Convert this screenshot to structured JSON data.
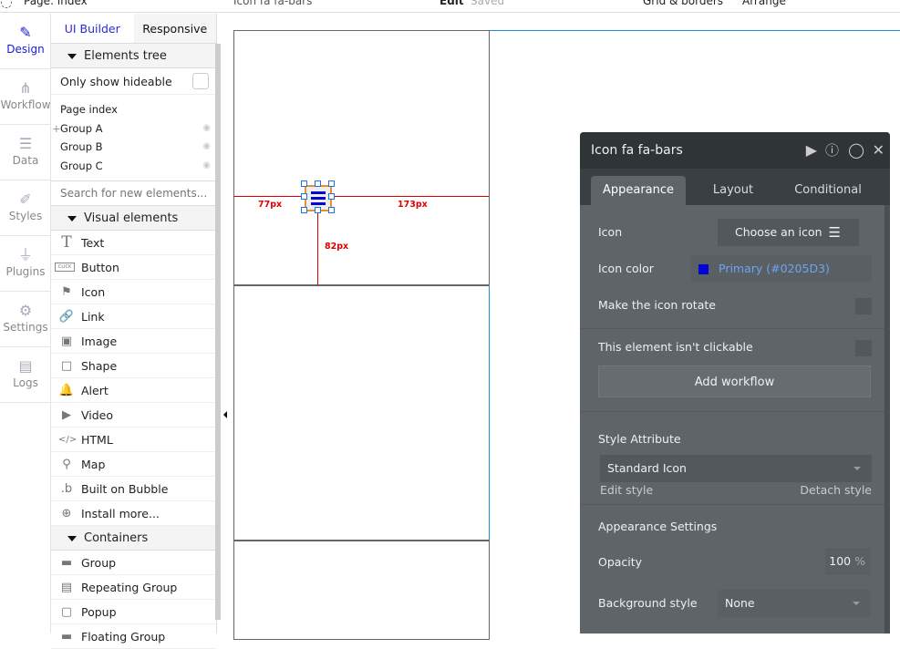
{
  "topbar": {
    "page_selector": "Page: index",
    "element_selector": "Icon fa fa-bars",
    "mode": "Edit",
    "save_status": "Saved",
    "grid_label": "Grid & borders",
    "arrange_label": "Arrange"
  },
  "nav": [
    {
      "label": "Design",
      "icon": "design-icon"
    },
    {
      "label": "Workflow",
      "icon": "workflow-icon"
    },
    {
      "label": "Data",
      "icon": "database-icon"
    },
    {
      "label": "Styles",
      "icon": "brush-icon"
    },
    {
      "label": "Plugins",
      "icon": "plug-icon"
    },
    {
      "label": "Settings",
      "icon": "gear-icon"
    },
    {
      "label": "Logs",
      "icon": "document-icon"
    }
  ],
  "panel": {
    "tabs": [
      "UI Builder",
      "Responsive"
    ],
    "elements_tree": "Elements tree",
    "only_hideable": "Only show hideable",
    "tree": [
      "Page index",
      "Group A",
      "Group B",
      "Group C"
    ],
    "search_placeholder": "Search for new elements...",
    "visual_header": "Visual elements",
    "visual": [
      {
        "label": "Text",
        "icon": "T"
      },
      {
        "label": "Button",
        "icon": "CLICK"
      },
      {
        "label": "Icon",
        "icon": "⚑"
      },
      {
        "label": "Link",
        "icon": "🔗"
      },
      {
        "label": "Image",
        "icon": "▣"
      },
      {
        "label": "Shape",
        "icon": "□"
      },
      {
        "label": "Alert",
        "icon": "🔔"
      },
      {
        "label": "Video",
        "icon": "▶"
      },
      {
        "label": "HTML",
        "icon": "</>"
      },
      {
        "label": "Map",
        "icon": "⚲"
      },
      {
        "label": "Built on Bubble",
        "icon": ".b"
      },
      {
        "label": "Install more...",
        "icon": "⊕"
      }
    ],
    "containers_header": "Containers",
    "containers": [
      {
        "label": "Group",
        "icon": "▬"
      },
      {
        "label": "Repeating Group",
        "icon": "▤"
      },
      {
        "label": "Popup",
        "icon": "▢"
      },
      {
        "label": "Floating Group",
        "icon": "▬"
      }
    ]
  },
  "canvas": {
    "left_distance": "77px",
    "right_distance": "173px",
    "bottom_distance": "82px",
    "guide_color": "#e00000",
    "selection_color": "#1a73e8"
  },
  "property_panel": {
    "title": "Icon fa fa-bars",
    "tabs": [
      "Appearance",
      "Layout",
      "Conditional"
    ],
    "active_tab": "Appearance",
    "icon_label": "Icon",
    "icon_button": "Choose an icon",
    "icon_color_label": "Icon color",
    "icon_color_value": "Primary (#0205D3)",
    "icon_color": "#0205D3",
    "rotate_label": "Make the icon rotate",
    "clickable_label": "This element isn't clickable",
    "add_workflow": "Add workflow",
    "style_attr_label": "Style Attribute",
    "style_value": "Standard Icon",
    "edit_style": "Edit style",
    "detach_style": "Detach style",
    "appearance_settings": "Appearance Settings",
    "opacity_label": "Opacity",
    "opacity_value": "100",
    "opacity_unit": "%",
    "bg_style_label": "Background style",
    "bg_style_value": "None"
  }
}
